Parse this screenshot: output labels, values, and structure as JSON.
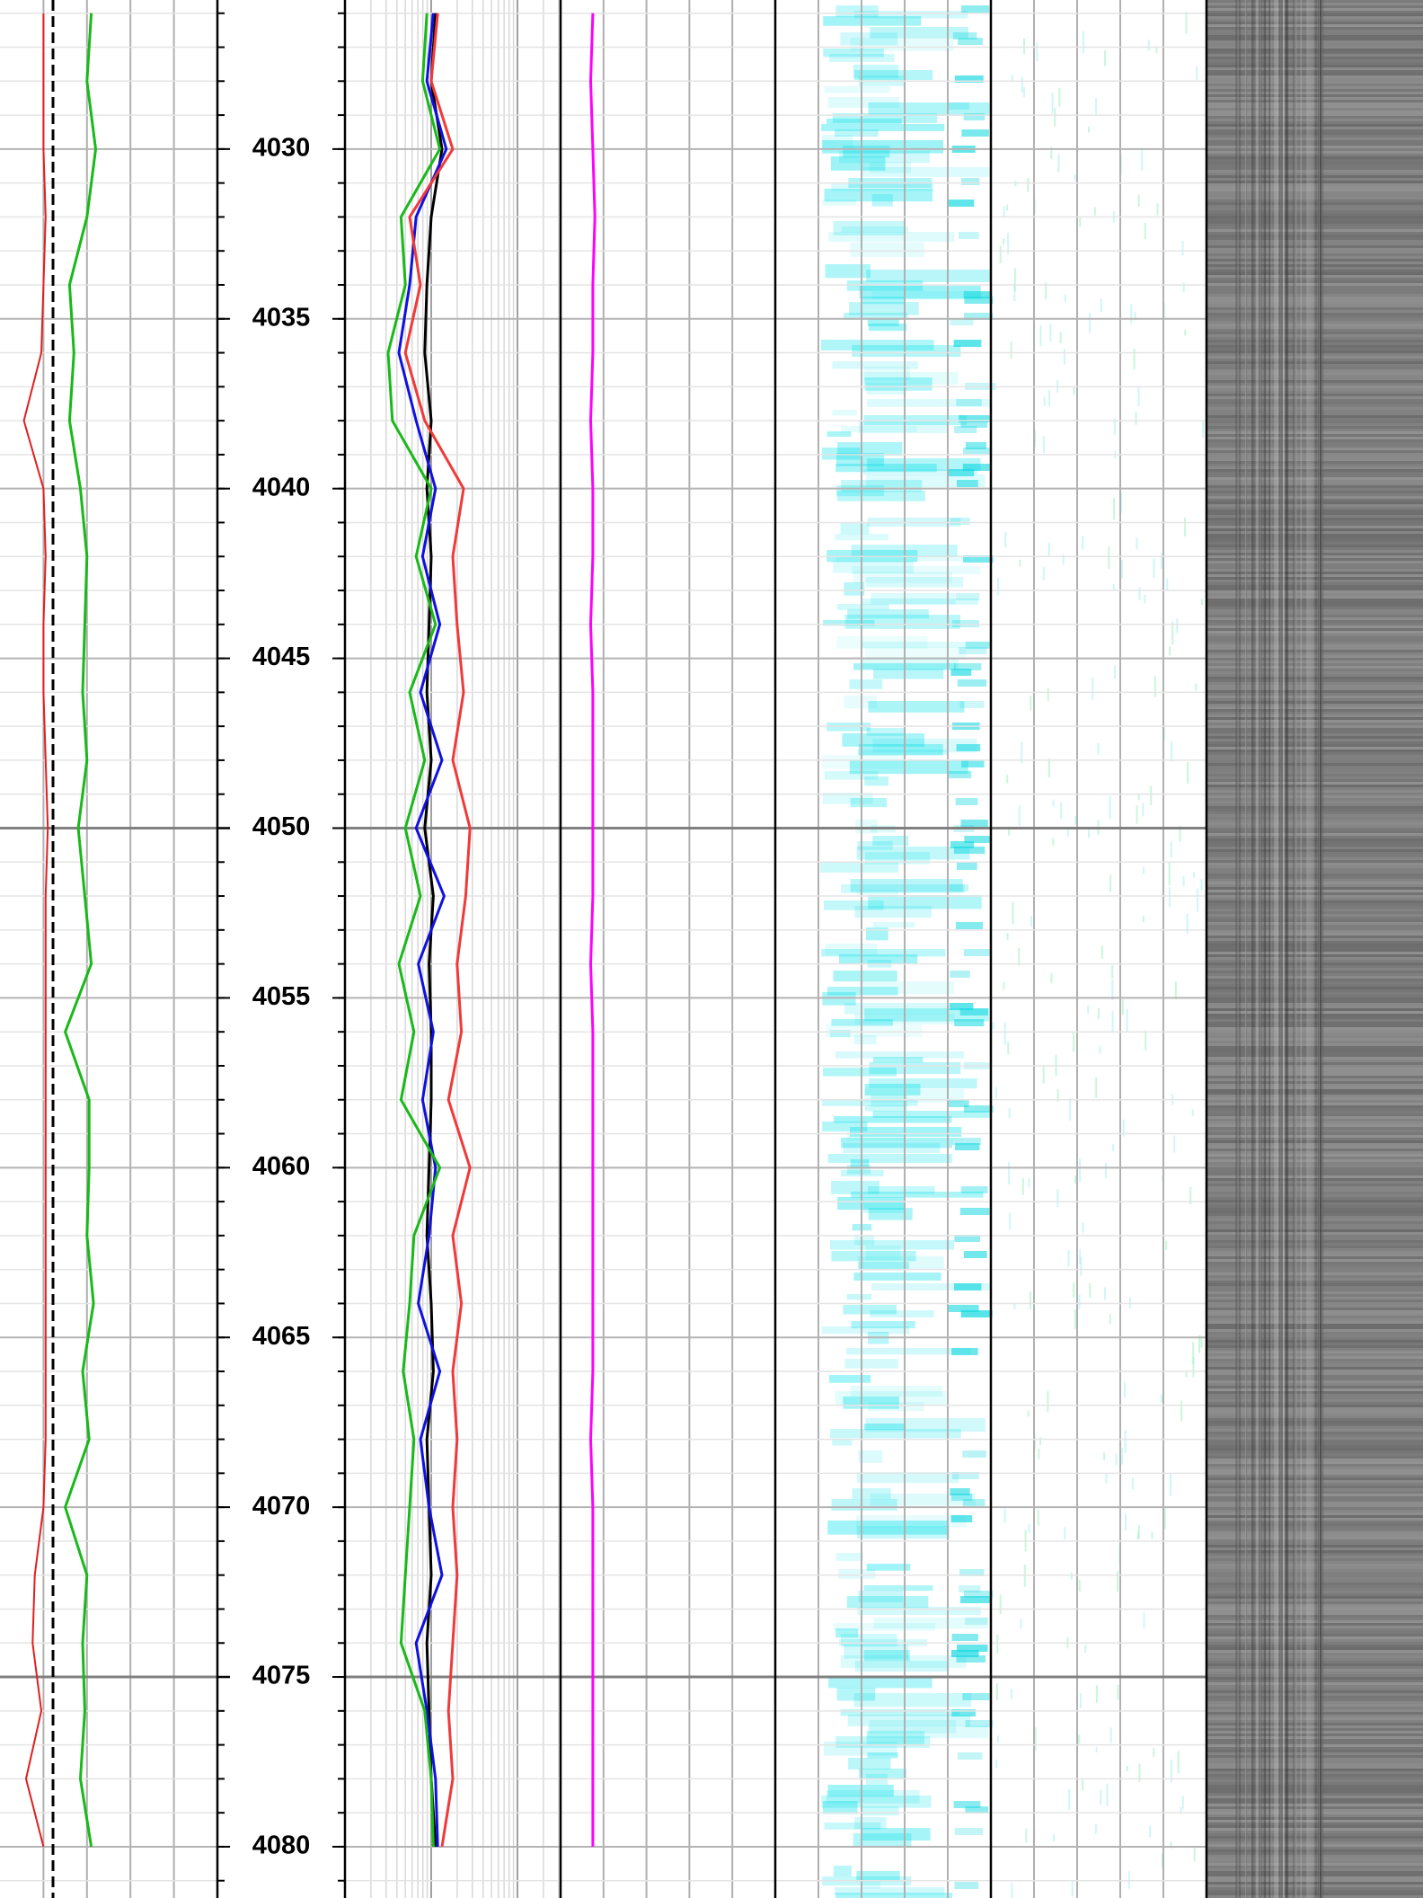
{
  "chart_data": {
    "type": "log",
    "ylim": [
      4025.61,
      4081.51
    ],
    "yticks": [
      4030,
      4035,
      4040,
      4045,
      4050,
      4055,
      4060,
      4065,
      4070,
      4075,
      4080
    ],
    "minor_yticks": [
      4026,
      4027,
      4028,
      4029,
      4030,
      4031,
      4032,
      4033,
      4034,
      4035,
      4036,
      4037,
      4038,
      4039,
      4040,
      4041,
      4042,
      4043,
      4044,
      4045,
      4046,
      4047,
      4048,
      4049,
      4050,
      4051,
      4052,
      4053,
      4054,
      4055,
      4056,
      4057,
      4058,
      4059,
      4060,
      4061,
      4062,
      4063,
      4064,
      4065,
      4066,
      4067,
      4068,
      4069,
      4070,
      4071,
      4072,
      4073,
      4074,
      4075,
      4076,
      4077,
      4078,
      4079,
      4080,
      4081
    ],
    "grid": true,
    "x": [
      4026,
      4028,
      4030,
      4032,
      4034,
      4036,
      4038,
      4040,
      4042,
      4044,
      4046,
      4048,
      4050,
      4052,
      4054,
      4056,
      4058,
      4060,
      4062,
      4064,
      4066,
      4068,
      4070,
      4072,
      4074,
      4076,
      4078,
      4080
    ],
    "series": [
      {
        "track": 1,
        "color": "#e02020",
        "values": [
          0.2,
          0.2,
          0.2,
          0.21,
          0.2,
          0.19,
          0.11,
          0.2,
          0.21,
          0.2,
          0.2,
          0.21,
          0.22,
          0.21,
          0.21,
          0.21,
          0.21,
          0.21,
          0.21,
          0.21,
          0.21,
          0.21,
          0.2,
          0.16,
          0.15,
          0.19,
          0.12,
          0.2
        ]
      },
      {
        "track": 1,
        "color": "#19b919",
        "values": [
          0.42,
          0.4,
          0.44,
          0.4,
          0.32,
          0.34,
          0.32,
          0.37,
          0.4,
          0.39,
          0.38,
          0.4,
          0.36,
          0.39,
          0.42,
          0.3,
          0.41,
          0.41,
          0.4,
          0.43,
          0.38,
          0.41,
          0.3,
          0.4,
          0.38,
          0.39,
          0.37,
          0.42
        ]
      },
      {
        "track": 2,
        "color": "#000000",
        "values": [
          0.42,
          0.4,
          0.45,
          0.4,
          0.38,
          0.37,
          0.4,
          0.38,
          0.4,
          0.39,
          0.38,
          0.4,
          0.37,
          0.41,
          0.39,
          0.4,
          0.4,
          0.39,
          0.38,
          0.4,
          0.41,
          0.38,
          0.39,
          0.4,
          0.38,
          0.39,
          0.4,
          0.42
        ]
      },
      {
        "track": 2,
        "color": "#1010e0",
        "values": [
          0.41,
          0.38,
          0.47,
          0.33,
          0.3,
          0.25,
          0.33,
          0.42,
          0.36,
          0.44,
          0.35,
          0.45,
          0.33,
          0.46,
          0.34,
          0.41,
          0.36,
          0.42,
          0.39,
          0.34,
          0.44,
          0.35,
          0.39,
          0.45,
          0.33,
          0.38,
          0.42,
          0.43
        ]
      },
      {
        "track": 2,
        "color": "#19b919",
        "values": [
          0.38,
          0.36,
          0.44,
          0.26,
          0.28,
          0.2,
          0.22,
          0.4,
          0.33,
          0.42,
          0.3,
          0.37,
          0.28,
          0.35,
          0.25,
          0.32,
          0.26,
          0.44,
          0.32,
          0.3,
          0.27,
          0.32,
          0.3,
          0.28,
          0.26,
          0.37,
          0.4,
          0.41
        ]
      },
      {
        "track": 2,
        "color": "#f03a3a",
        "values": [
          0.43,
          0.4,
          0.5,
          0.3,
          0.35,
          0.28,
          0.37,
          0.55,
          0.5,
          0.52,
          0.55,
          0.5,
          0.58,
          0.56,
          0.52,
          0.54,
          0.48,
          0.58,
          0.5,
          0.54,
          0.5,
          0.52,
          0.5,
          0.52,
          0.5,
          0.48,
          0.5,
          0.45
        ]
      },
      {
        "track": 3,
        "color": "#ff00ff",
        "values": [
          0.15,
          0.14,
          0.15,
          0.16,
          0.15,
          0.15,
          0.14,
          0.15,
          0.15,
          0.14,
          0.15,
          0.15,
          0.15,
          0.15,
          0.14,
          0.15,
          0.15,
          0.15,
          0.15,
          0.15,
          0.15,
          0.14,
          0.15,
          0.15,
          0.15,
          0.15,
          0.15,
          0.15
        ]
      }
    ]
  }
}
